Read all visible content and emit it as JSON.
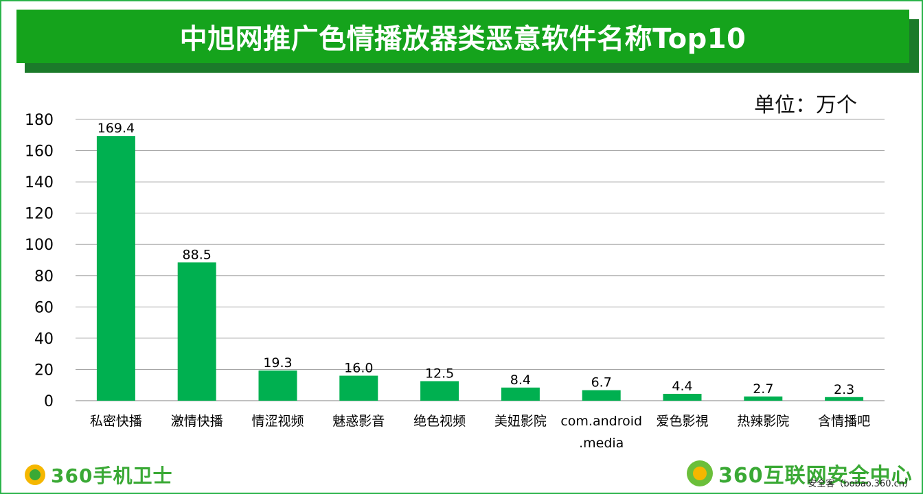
{
  "header": {
    "title": "中旭网推广色情播放器类恶意软件名称Top10"
  },
  "unit_label": "单位：万个",
  "footer": {
    "left_logo_text": "360手机卫士",
    "right_logo_text": "360互联网安全中心",
    "source": "安全客（bobao.360.cn）"
  },
  "colors": {
    "bar": "#00b050",
    "title_bg": "#15a31c",
    "grid": "#a6a6a6"
  },
  "chart_data": {
    "type": "bar",
    "categories": [
      "私密快播",
      "激情快播",
      "情涩视频",
      "魅惑影音",
      "绝色视频",
      "美妞影院",
      [
        "com.android",
        ".media"
      ],
      "爱色影視",
      "热辣影院",
      "含情播吧"
    ],
    "values": [
      169.4,
      88.5,
      19.3,
      16.0,
      12.5,
      8.4,
      6.7,
      4.4,
      2.7,
      2.3
    ],
    "value_labels": [
      "169.4",
      "88.5",
      "19.3",
      "16.0",
      "12.5",
      "8.4",
      "6.7",
      "4.4",
      "2.7",
      "2.3"
    ],
    "ylim": [
      0,
      180
    ],
    "yticks": [
      0,
      20,
      40,
      60,
      80,
      100,
      120,
      140,
      160,
      180
    ],
    "grid": true,
    "title": "",
    "xlabel": "",
    "ylabel": ""
  }
}
